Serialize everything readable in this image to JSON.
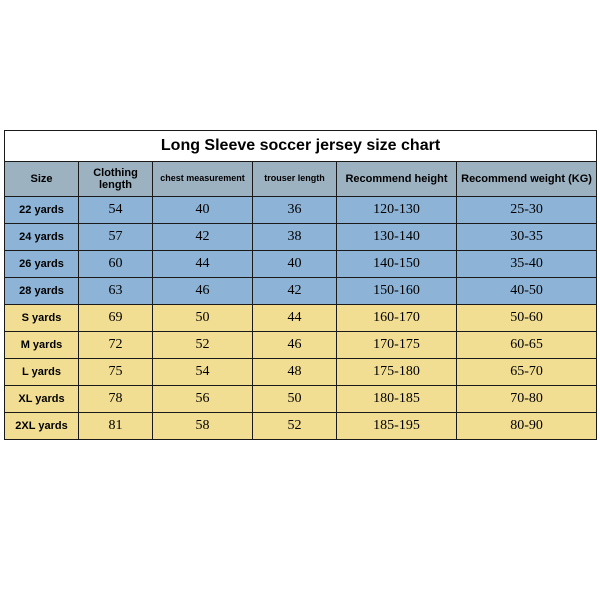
{
  "title": "Long Sleeve soccer jersey size chart",
  "colors": {
    "header_bg": "#9db2c1",
    "blue_bg": "#8db3d7",
    "yellow_bg": "#f2de92",
    "border": "#1a1a1a",
    "page_bg": "#ffffff"
  },
  "columns": [
    "Size",
    "Clothing length",
    "chest measurement",
    "trouser length",
    "Recommend height",
    "Recommend weight (KG)"
  ],
  "col_small": [
    false,
    false,
    true,
    true,
    false,
    false
  ],
  "rows": [
    {
      "group": "blue",
      "cells": [
        "22 yards",
        "54",
        "40",
        "36",
        "120-130",
        "25-30"
      ]
    },
    {
      "group": "blue",
      "cells": [
        "24 yards",
        "57",
        "42",
        "38",
        "130-140",
        "30-35"
      ]
    },
    {
      "group": "blue",
      "cells": [
        "26 yards",
        "60",
        "44",
        "40",
        "140-150",
        "35-40"
      ]
    },
    {
      "group": "blue",
      "cells": [
        "28 yards",
        "63",
        "46",
        "42",
        "150-160",
        "40-50"
      ]
    },
    {
      "group": "yellow",
      "cells": [
        "S yards",
        "69",
        "50",
        "44",
        "160-170",
        "50-60"
      ]
    },
    {
      "group": "yellow",
      "cells": [
        "M yards",
        "72",
        "52",
        "46",
        "170-175",
        "60-65"
      ]
    },
    {
      "group": "yellow",
      "cells": [
        "L yards",
        "75",
        "54",
        "48",
        "175-180",
        "65-70"
      ]
    },
    {
      "group": "yellow",
      "cells": [
        "XL yards",
        "78",
        "56",
        "50",
        "180-185",
        "70-80"
      ]
    },
    {
      "group": "yellow",
      "cells": [
        "2XL yards",
        "81",
        "58",
        "52",
        "185-195",
        "80-90"
      ]
    }
  ]
}
